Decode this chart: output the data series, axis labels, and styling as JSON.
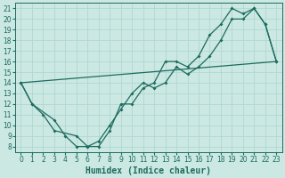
{
  "xlabel": "Humidex (Indice chaleur)",
  "background_color": "#cbe8e3",
  "line_color": "#1e6b5e",
  "grid_color": "#b0d8d0",
  "xlim": [
    -0.5,
    23.5
  ],
  "ylim": [
    7.5,
    21.5
  ],
  "xticks": [
    0,
    1,
    2,
    3,
    4,
    5,
    6,
    7,
    8,
    9,
    10,
    11,
    12,
    13,
    14,
    15,
    16,
    17,
    18,
    19,
    20,
    21,
    22,
    23
  ],
  "yticks": [
    8,
    9,
    10,
    11,
    12,
    13,
    14,
    15,
    16,
    17,
    18,
    19,
    20,
    21
  ],
  "line1_x": [
    0,
    1,
    3,
    4,
    5,
    6,
    7,
    8,
    9,
    10,
    11,
    12,
    13,
    14,
    15,
    16,
    17,
    18,
    19,
    20,
    21,
    22,
    23
  ],
  "line1_y": [
    14,
    12,
    10.5,
    9,
    8,
    8,
    8.5,
    10,
    11.5,
    13,
    14,
    13.5,
    14,
    15.5,
    14.8,
    15.5,
    16.5,
    18,
    20,
    20,
    21,
    19.5,
    16
  ],
  "line2_x": [
    0,
    1,
    2,
    3,
    5,
    6,
    7,
    8,
    9,
    10,
    11,
    12,
    13,
    14,
    15,
    16,
    17,
    18,
    19,
    20,
    21,
    22,
    23
  ],
  "line2_y": [
    14,
    12,
    11,
    9.5,
    9,
    8,
    8,
    9.5,
    12,
    12,
    13.5,
    14,
    16,
    16,
    15.5,
    16.5,
    18.5,
    19.5,
    21,
    20.5,
    21,
    19.5,
    16
  ],
  "line3_x": [
    0,
    23
  ],
  "line3_y": [
    14,
    16
  ],
  "xlabel_fontsize": 7,
  "tick_fontsize": 5.5,
  "marker_size": 2.0
}
